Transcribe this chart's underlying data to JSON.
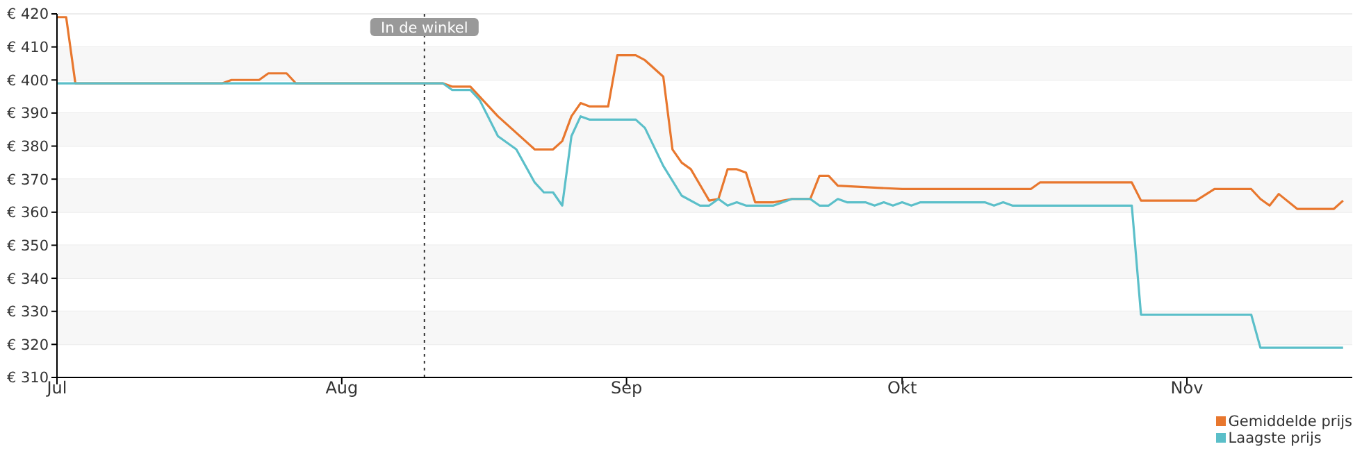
{
  "chart_data": {
    "type": "line",
    "xlim": [
      "--07-01",
      "--11-19"
    ],
    "xticks": [
      {
        "value": "--07-01",
        "label": "Jul"
      },
      {
        "value": "--08-01",
        "label": "Aug"
      },
      {
        "value": "--09-01",
        "label": "Sep"
      },
      {
        "value": "--10-01",
        "label": "Okt"
      },
      {
        "value": "--11-01",
        "label": "Nov"
      }
    ],
    "ylim": [
      310,
      420
    ],
    "yticks": [
      {
        "value": 310,
        "label": "€ 310"
      },
      {
        "value": 320,
        "label": "€ 320"
      },
      {
        "value": 330,
        "label": "€ 330"
      },
      {
        "value": 340,
        "label": "€ 340"
      },
      {
        "value": 350,
        "label": "€ 350"
      },
      {
        "value": 360,
        "label": "€ 360"
      },
      {
        "value": 370,
        "label": "€ 370"
      },
      {
        "value": 380,
        "label": "€ 380"
      },
      {
        "value": 390,
        "label": "€ 390"
      },
      {
        "value": 400,
        "label": "€ 400"
      },
      {
        "value": 410,
        "label": "€ 410"
      },
      {
        "value": 420,
        "label": "€ 420"
      }
    ],
    "grid": "y",
    "legend": "bottom right",
    "marker": "none",
    "line_style": "solid",
    "ref_lines": [
      {
        "axis": "x",
        "value": "--08-10",
        "label": "In de winkel",
        "color": "#333333",
        "line_style": "dotted"
      }
    ],
    "series": [
      {
        "name": "Gemiddelde prijs",
        "color": "#e8772e",
        "x": [
          "--07-01",
          "--07-02",
          "--07-03",
          "--07-19",
          "--07-20",
          "--07-23",
          "--07-24",
          "--07-26",
          "--07-27",
          "--08-12",
          "--08-13",
          "--08-15",
          "--08-18",
          "--08-22",
          "--08-24",
          "--08-25",
          "--08-26",
          "--08-27",
          "--08-28",
          "--08-30",
          "--08-31",
          "--09-02",
          "--09-03",
          "--09-05",
          "--09-06",
          "--09-07",
          "--09-08",
          "--09-10",
          "--09-11",
          "--09-12",
          "--09-13",
          "--09-14",
          "--09-15",
          "--09-17",
          "--09-19",
          "--09-21",
          "--09-22",
          "--09-23",
          "--09-24",
          "--10-01",
          "--10-15",
          "--10-16",
          "--10-26",
          "--10-27",
          "--11-02",
          "--11-04",
          "--11-08",
          "--11-09",
          "--11-10",
          "--11-11",
          "--11-13",
          "--11-17",
          "--11-18"
        ],
        "values": [
          419,
          419,
          399,
          399,
          400,
          400,
          402,
          402,
          399,
          399,
          398,
          398,
          389,
          379,
          379,
          381.5,
          389,
          393,
          392,
          392,
          407.5,
          407.5,
          406,
          401,
          379,
          375,
          373,
          363.5,
          364,
          373,
          373,
          372,
          363,
          363,
          364,
          364,
          371,
          371,
          368,
          367,
          367,
          369,
          369,
          363.5,
          363.5,
          367,
          367,
          364,
          362,
          365.5,
          361,
          361,
          363.5
        ]
      },
      {
        "name": "Laagste prijs",
        "color": "#5bbfc9",
        "x": [
          "--07-01",
          "--08-12",
          "--08-13",
          "--08-15",
          "--08-16",
          "--08-18",
          "--08-20",
          "--08-22",
          "--08-23",
          "--08-24",
          "--08-25",
          "--08-26",
          "--08-27",
          "--08-28",
          "--09-02",
          "--09-03",
          "--09-05",
          "--09-07",
          "--09-09",
          "--09-10",
          "--09-11",
          "--09-12",
          "--09-13",
          "--09-14",
          "--09-17",
          "--09-19",
          "--09-21",
          "--09-22",
          "--09-23",
          "--09-24",
          "--09-25",
          "--09-27",
          "--09-28",
          "--09-29",
          "--09-30",
          "--10-01",
          "--10-02",
          "--10-03",
          "--10-10",
          "--10-11",
          "--10-12",
          "--10-13",
          "--10-26",
          "--10-27",
          "--11-08",
          "--11-09",
          "--11-18"
        ],
        "values": [
          399,
          399,
          397,
          397,
          394,
          383,
          379,
          369,
          366,
          366,
          362,
          383,
          389,
          388,
          388,
          385.5,
          374,
          365,
          362,
          362,
          364,
          362,
          363,
          362,
          362,
          364,
          364,
          362,
          362,
          364,
          363,
          363,
          362,
          363,
          362,
          363,
          362,
          363,
          363,
          362,
          363,
          362,
          362,
          329,
          329,
          319,
          319
        ]
      }
    ]
  }
}
